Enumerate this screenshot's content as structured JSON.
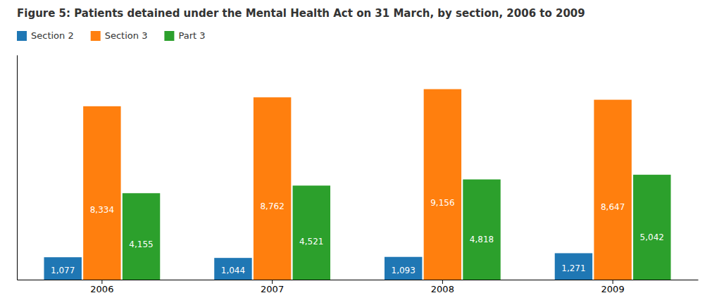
{
  "chart_data": {
    "type": "bar",
    "title": "Figure 5: Patients detained under the Mental Health Act on 31 March, by section, 2006 to 2009",
    "categories": [
      "2006",
      "2007",
      "2008",
      "2009"
    ],
    "series": [
      {
        "name": "Section 2",
        "values": [
          1077,
          1044,
          1093,
          1271
        ],
        "value_labels": [
          "1,077",
          "1,044",
          "1,093",
          "1,271"
        ]
      },
      {
        "name": "Section 3",
        "values": [
          8334,
          8762,
          9156,
          8647
        ],
        "value_labels": [
          "8,334",
          "8,762",
          "9,156",
          "8,647"
        ]
      },
      {
        "name": "Part 3",
        "values": [
          4155,
          4521,
          4818,
          5042
        ],
        "value_labels": [
          "4,155",
          "4,521",
          "4,818",
          "5,042"
        ]
      }
    ],
    "ylim": [
      0,
      10800
    ],
    "grid": false,
    "legend": "upper left",
    "data_labels": true,
    "tick_labels": "x"
  }
}
